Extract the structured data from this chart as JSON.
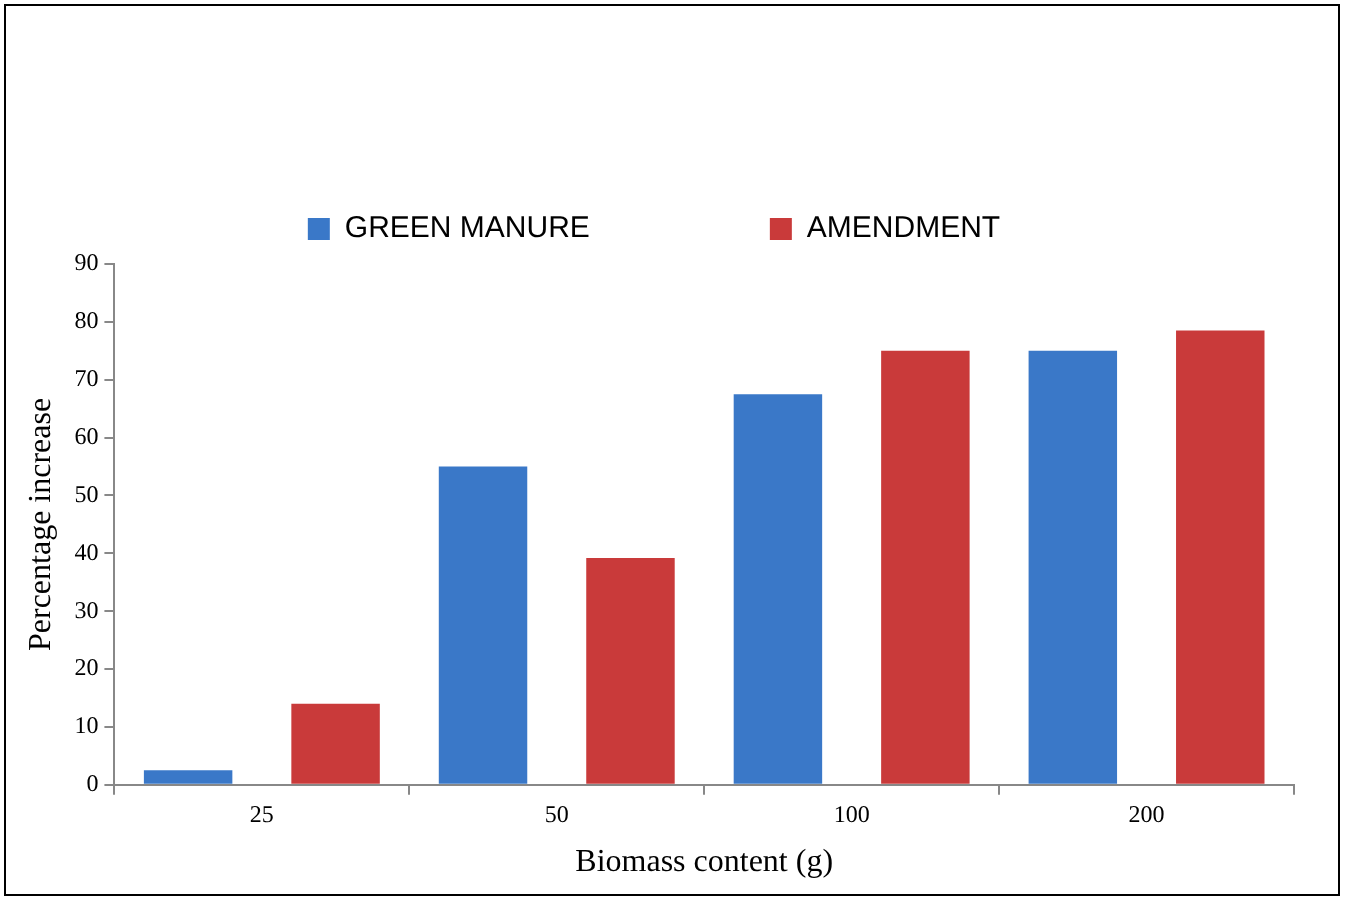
{
  "chart_data": {
    "type": "bar",
    "xlabel": "Biomass content (g)",
    "ylabel": "Percentage increase",
    "categories": [
      "25",
      "50",
      "100",
      "200"
    ],
    "series": [
      {
        "name": "GREEN MANURE",
        "color": "#3a78c8",
        "values": [
          2.5,
          55,
          67.5,
          75
        ]
      },
      {
        "name": "AMENDMENT",
        "color": "#c93a3a",
        "values": [
          14,
          39.2,
          75,
          78.5
        ]
      }
    ],
    "ylim": [
      0,
      90
    ],
    "yticks": [
      0,
      10,
      20,
      30,
      40,
      50,
      60,
      70,
      80,
      90
    ],
    "grid": false,
    "legend": "top"
  }
}
